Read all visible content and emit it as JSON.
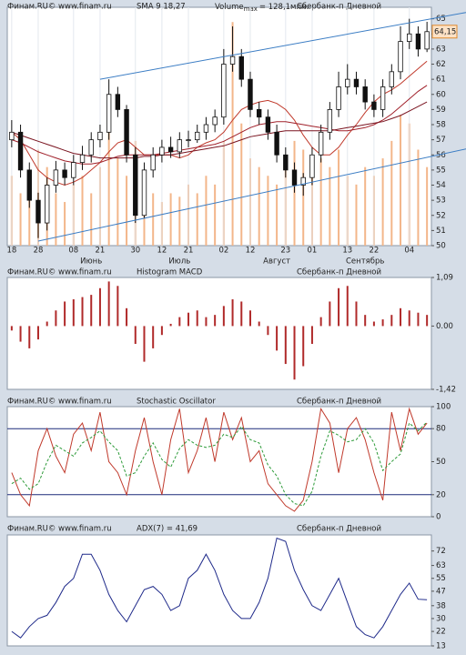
{
  "chart_data": [
    {
      "type": "candlestick",
      "source": "Финам.RU©  www.finam.ru",
      "title": "SMA 9,18,27",
      "title_color": "#d0312d",
      "volume_title": "Volume",
      "volume_sub": "max",
      "volume_max": {
        "value": 128.1,
        "label": "= 128,1млн."
      },
      "volume_color": "#f3b68a",
      "instrument": "Сбербанк-п Дневной",
      "categories": [
        "18",
        null,
        null,
        "28",
        null,
        null,
        null,
        "08",
        null,
        null,
        "21",
        null,
        null,
        null,
        "30",
        null,
        null,
        "12",
        null,
        null,
        "21",
        null,
        null,
        null,
        "02",
        null,
        null,
        "12",
        null,
        null,
        null,
        "23",
        null,
        null,
        "01",
        null,
        null,
        null,
        "13",
        null,
        null,
        "22",
        null,
        null,
        null,
        "04",
        null,
        null
      ],
      "months": [
        null,
        null,
        null,
        null,
        null,
        null,
        null,
        null,
        null,
        "Июнь",
        null,
        null,
        null,
        null,
        null,
        null,
        null,
        null,
        null,
        "Июль",
        null,
        null,
        null,
        null,
        null,
        null,
        null,
        null,
        null,
        null,
        "Август",
        null,
        null,
        null,
        null,
        null,
        null,
        null,
        null,
        null,
        "Сентябрь",
        null,
        null,
        null,
        null,
        null,
        null,
        null
      ],
      "open": [
        57.0,
        57.5,
        55.0,
        53.0,
        51.5,
        54.0,
        55.0,
        54.5,
        55.5,
        56.0,
        57.0,
        57.5,
        60.0,
        59.0,
        56.0,
        52.0,
        55.0,
        56.0,
        56.5,
        56.2,
        57.0,
        57.0,
        57.5,
        58.0,
        58.5,
        62.0,
        62.5,
        61.0,
        59.0,
        58.5,
        57.5,
        56.0,
        55.0,
        54.0,
        54.5,
        56.0,
        57.5,
        59.0,
        60.5,
        61.0,
        60.5,
        59.5,
        59.0,
        60.5,
        61.5,
        63.5,
        64.0,
        63.0
      ],
      "high": [
        58.3,
        58.0,
        55.5,
        53.5,
        54.5,
        55.6,
        55.5,
        56.0,
        56.6,
        57.5,
        58.0,
        61.0,
        60.5,
        59.3,
        56.5,
        55.5,
        56.5,
        57.0,
        57.2,
        57.5,
        57.6,
        58.0,
        58.5,
        59.0,
        63.0,
        64.5,
        63.0,
        61.5,
        59.5,
        59.0,
        58.0,
        56.5,
        55.5,
        54.8,
        56.5,
        58.0,
        59.5,
        61.5,
        62.0,
        61.5,
        61.0,
        60.0,
        61.0,
        62.0,
        64.5,
        65.0,
        64.5,
        64.8
      ],
      "low": [
        56.5,
        54.5,
        52.5,
        50.5,
        51.0,
        53.5,
        54.0,
        54.0,
        55.0,
        55.5,
        56.5,
        57.0,
        58.5,
        55.5,
        51.5,
        51.8,
        54.5,
        55.5,
        55.8,
        55.8,
        56.5,
        56.8,
        57.0,
        57.5,
        58.0,
        61.5,
        60.5,
        58.5,
        58.0,
        57.0,
        55.5,
        54.5,
        53.5,
        53.3,
        54.0,
        55.5,
        57.0,
        58.5,
        60.0,
        60.0,
        59.0,
        58.5,
        58.5,
        60.0,
        61.0,
        63.0,
        62.5,
        62.8
      ],
      "close": [
        57.5,
        55.0,
        53.0,
        51.5,
        54.0,
        55.0,
        54.5,
        55.5,
        56.0,
        57.0,
        57.5,
        60.0,
        59.0,
        56.0,
        52.0,
        55.0,
        56.0,
        56.5,
        56.2,
        57.0,
        57.0,
        57.5,
        58.0,
        58.5,
        62.0,
        62.5,
        61.0,
        59.0,
        58.5,
        57.5,
        56.0,
        55.0,
        54.0,
        54.5,
        56.0,
        57.5,
        59.0,
        60.5,
        61.0,
        60.5,
        59.5,
        59.0,
        60.5,
        61.5,
        63.5,
        64.0,
        63.0,
        64.15
      ],
      "volume": [
        40,
        30,
        35,
        55,
        45,
        30,
        25,
        35,
        40,
        30,
        45,
        70,
        50,
        40,
        60,
        35,
        30,
        25,
        30,
        28,
        35,
        30,
        40,
        35,
        60,
        128.1,
        70,
        50,
        45,
        40,
        35,
        50,
        60,
        55,
        40,
        50,
        45,
        55,
        40,
        35,
        45,
        40,
        50,
        60,
        75,
        70,
        55,
        45
      ],
      "series": [
        {
          "color": "#c0392b",
          "values": [
            57.5,
            57,
            56,
            55,
            54.5,
            54.2,
            54,
            54.2,
            54.5,
            55,
            55.5,
            56.2,
            56.8,
            57,
            56.5,
            56,
            56,
            56,
            56,
            55.8,
            56,
            56.5,
            56.8,
            57,
            57.5,
            58.3,
            59,
            59.3,
            59.5,
            59.6,
            59.4,
            59,
            58.3,
            57.3,
            56.5,
            56,
            56,
            56.5,
            57.3,
            58,
            58.8,
            59.5,
            60,
            60.3,
            60.7,
            61.2,
            61.7,
            62.2
          ]
        },
        {
          "color": "#a0202a",
          "values": [
            57,
            56.8,
            56.5,
            56.2,
            56,
            55.8,
            55.6,
            55.5,
            55.4,
            55.4,
            55.5,
            55.7,
            55.9,
            56,
            56,
            56,
            56,
            56.1,
            56.2,
            56.3,
            56.4,
            56.5,
            56.6,
            56.7,
            56.9,
            57.2,
            57.5,
            57.8,
            58,
            58.1,
            58.2,
            58.2,
            58.1,
            58,
            57.9,
            57.8,
            57.7,
            57.6,
            57.6,
            57.7,
            57.8,
            58,
            58.3,
            58.7,
            59.2,
            59.7,
            60.2,
            60.6
          ]
        },
        {
          "color": "#7a1420",
          "values": [
            57.5,
            57.3,
            57.1,
            56.9,
            56.7,
            56.5,
            56.3,
            56.1,
            56,
            55.9,
            55.8,
            55.8,
            55.8,
            55.8,
            55.8,
            55.9,
            55.9,
            56,
            56,
            56.1,
            56.2,
            56.3,
            56.4,
            56.5,
            56.6,
            56.8,
            57,
            57.2,
            57.3,
            57.4,
            57.5,
            57.6,
            57.6,
            57.6,
            57.6,
            57.6,
            57.6,
            57.7,
            57.8,
            57.9,
            58,
            58.1,
            58.2,
            58.4,
            58.6,
            58.9,
            59.2,
            59.5
          ]
        }
      ],
      "trendlines": [
        {
          "color": "#3b7dc4",
          "x": [
            10,
            47.5
          ],
          "y": [
            61,
            65
          ]
        },
        {
          "color": "#3b7dc4",
          "x": [
            3,
            47.5
          ],
          "y": [
            50.3,
            55.9
          ]
        }
      ],
      "last_price": {
        "value": 64.15,
        "label": "64,15"
      },
      "ylim": [
        50,
        65.4
      ],
      "yticks": [
        50,
        51,
        52,
        53,
        54,
        55,
        56,
        57,
        58,
        59,
        60,
        61,
        62,
        63,
        64,
        65
      ]
    },
    {
      "type": "bar",
      "source": "Финам.RU©  www.finam.ru",
      "title": "Histogram MACD",
      "title_color": "#2233aa",
      "instrument": "Сбербанк-п Дневной",
      "color": "#b02a2a",
      "values": [
        -0.1,
        -0.35,
        -0.5,
        -0.3,
        0.1,
        0.35,
        0.55,
        0.6,
        0.65,
        0.7,
        0.85,
        1.0,
        0.9,
        0.4,
        -0.4,
        -0.8,
        -0.5,
        -0.2,
        0.05,
        0.2,
        0.3,
        0.35,
        0.2,
        0.25,
        0.45,
        0.6,
        0.55,
        0.35,
        0.1,
        -0.2,
        -0.55,
        -0.85,
        -1.2,
        -0.9,
        -0.4,
        0.2,
        0.55,
        0.85,
        0.9,
        0.55,
        0.25,
        0.1,
        0.15,
        0.25,
        0.4,
        0.35,
        0.3,
        0.25
      ],
      "ylim": [
        -1.42,
        1.09
      ],
      "yticks": [
        {
          "value": 1.09,
          "label": "1,09"
        },
        {
          "value": 0,
          "label": "0.00"
        },
        {
          "value": -1.42,
          "label": "-1,42"
        }
      ]
    },
    {
      "type": "line",
      "source": "Финам.RU©  www.finam.ru",
      "title": "Stochastic Oscillator",
      "title_color": "#2233aa",
      "instrument": "Сбербанк-п Дневной",
      "series": [
        {
          "color": "#c0392b",
          "values": [
            40,
            20,
            10,
            60,
            80,
            55,
            40,
            75,
            85,
            60,
            95,
            50,
            40,
            20,
            60,
            90,
            50,
            20,
            70,
            98,
            40,
            60,
            90,
            50,
            95,
            70,
            90,
            50,
            60,
            30,
            20,
            10,
            5,
            15,
            50,
            98,
            85,
            40,
            80,
            90,
            70,
            40,
            15,
            95,
            60,
            98,
            75,
            85
          ]
        },
        {
          "color": "#2e9b3a",
          "dashed": true,
          "values": [
            30,
            35,
            25,
            30,
            50,
            65,
            60,
            55,
            67,
            72,
            78,
            68,
            60,
            37,
            40,
            55,
            67,
            52,
            45,
            62,
            70,
            65,
            63,
            65,
            75,
            72,
            82,
            70,
            67,
            47,
            37,
            20,
            12,
            10,
            23,
            55,
            78,
            74,
            68,
            70,
            80,
            67,
            42,
            50,
            57,
            85,
            78,
            86
          ]
        }
      ],
      "levels": [
        20,
        80
      ],
      "level_color": "#1d2a7a",
      "ylim": [
        0,
        100
      ],
      "yticks": [
        0,
        20,
        50,
        80,
        100
      ]
    },
    {
      "type": "line",
      "source": "Финам.RU©  www.finam.ru",
      "title": "ADX(7) = 41,69",
      "title_color": "#2233aa",
      "instrument": "Сбербанк-п Дневной",
      "series": [
        {
          "color": "#1f2a8a",
          "values": [
            22,
            18,
            25,
            30,
            32,
            40,
            50,
            55,
            70,
            70,
            60,
            45,
            35,
            28,
            38,
            48,
            50,
            45,
            35,
            38,
            55,
            60,
            70,
            60,
            45,
            35,
            30,
            30,
            40,
            55,
            80,
            78,
            60,
            48,
            38,
            35,
            45,
            55,
            40,
            25,
            20,
            18,
            25,
            35,
            45,
            52,
            42,
            41.69
          ]
        }
      ],
      "ylim": [
        13,
        82
      ],
      "yticks": [
        13,
        22,
        30,
        38,
        47,
        55,
        63,
        72
      ]
    }
  ]
}
